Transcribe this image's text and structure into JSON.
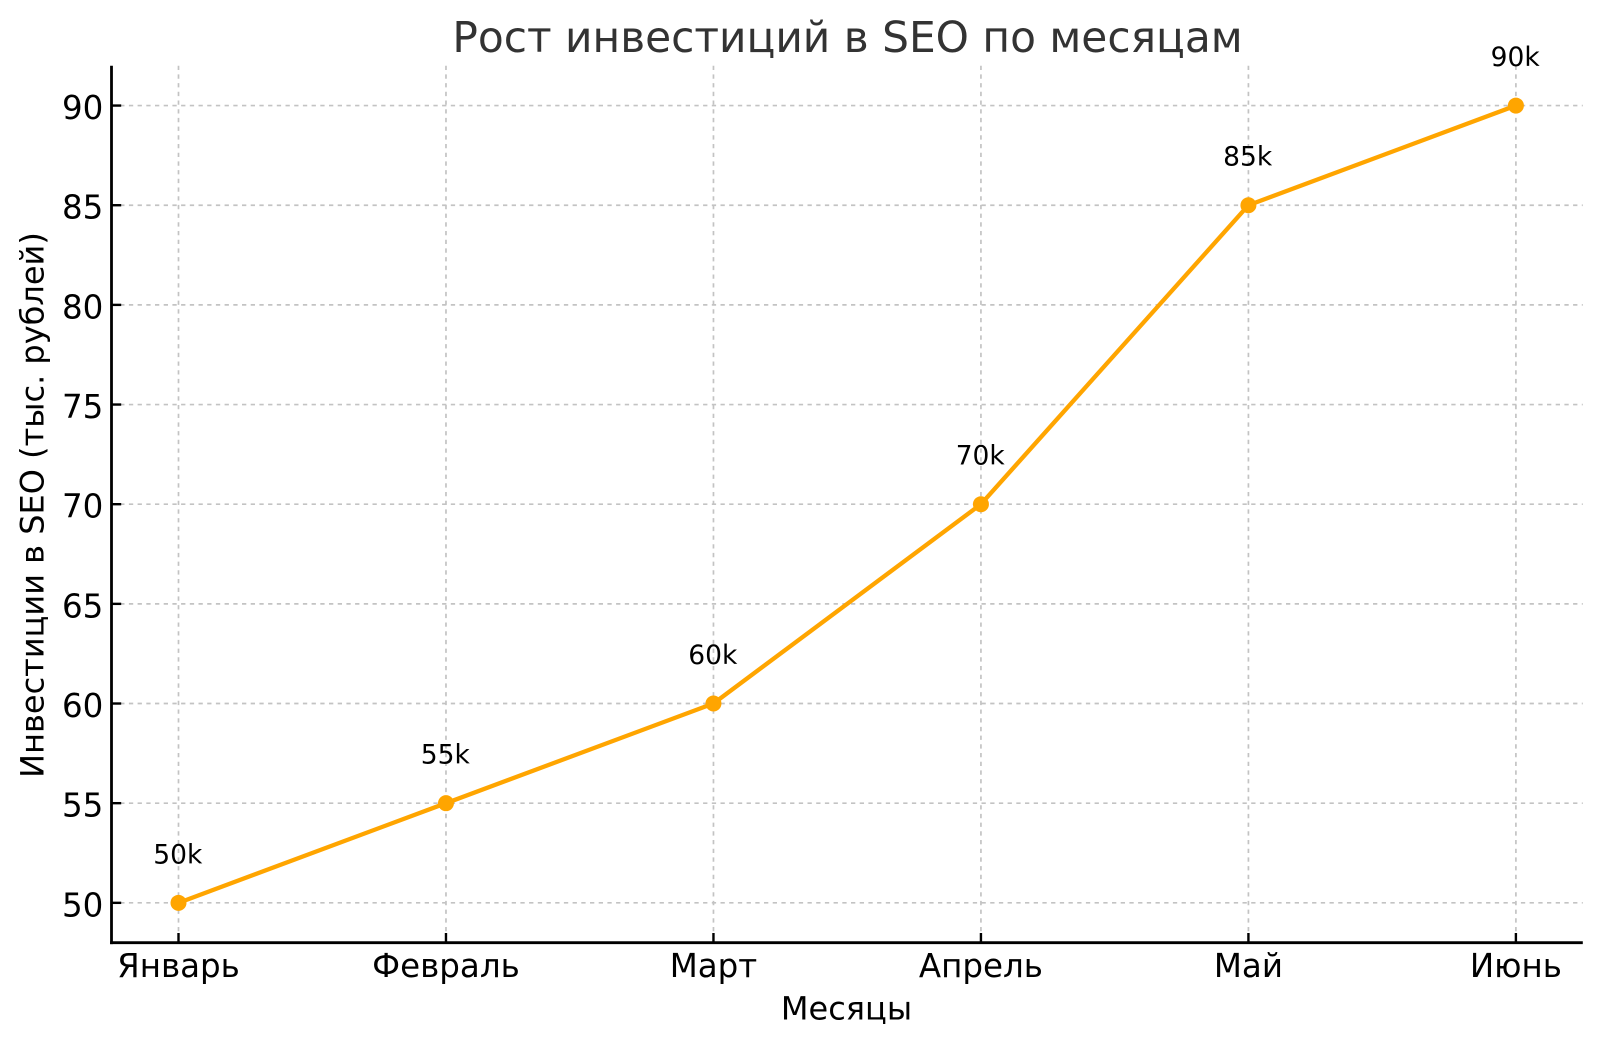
{
  "chart_data": {
    "type": "line",
    "title": "Рост инвестиций в SEO по месяцам",
    "xlabel": "Месяцы",
    "ylabel": "Инвестиции в SEO (тыс. рублей)",
    "categories": [
      "Январь",
      "Февраль",
      "Март",
      "Апрель",
      "Май",
      "Июнь"
    ],
    "series": [
      {
        "name": "Инвестиции в SEO",
        "values": [
          50,
          55,
          60,
          70,
          85,
          90
        ]
      }
    ],
    "point_labels": [
      "50k",
      "55k",
      "60k",
      "70k",
      "85k",
      "90k"
    ],
    "yticks": [
      "50",
      "55",
      "60",
      "65",
      "70",
      "75",
      "80",
      "85",
      "90"
    ],
    "ytick_values": [
      50,
      55,
      60,
      65,
      70,
      75,
      80,
      85,
      90
    ],
    "ylim": [
      48,
      92
    ],
    "grid": "on",
    "grid_style": "dashed",
    "legend": "none",
    "colors": {
      "line": "#FFA500",
      "marker": "#FFA500",
      "grid": "#c3c3c3",
      "spine": "#000000",
      "tick_label": "#000000",
      "axis_label": "#000000",
      "title": "#333333",
      "point_label": "#000000",
      "background": "#ffffff"
    }
  }
}
